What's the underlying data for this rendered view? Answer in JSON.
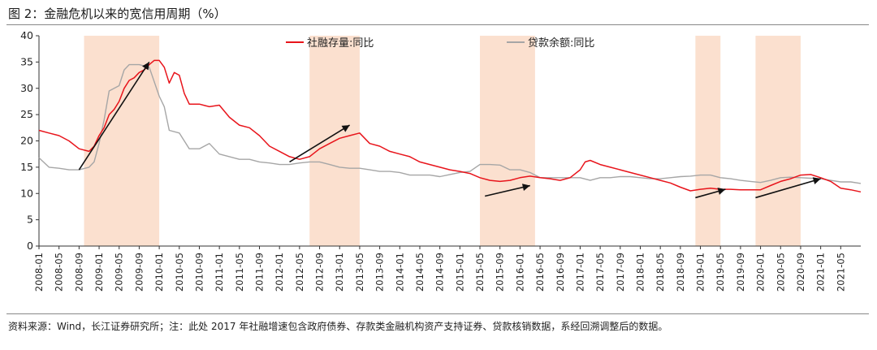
{
  "figure": {
    "title": "图 2：金融危机以来的宽信用周期（%）",
    "note": "资料来源：Wind，长江证券研究所；注：此处 2017 年社融增速包含政府债券、存款类金融机构资产支持证券、贷款核销数据，系经回溯调整后的数据。"
  },
  "colors": {
    "social_financing": "#e8141b",
    "loan_balance": "#a6a6a6",
    "shade": "#fbe0cf",
    "arrow": "#111111"
  },
  "chart_data": {
    "type": "line",
    "title": "图 2：金融危机以来的宽信用周期（%）",
    "xlabel": "",
    "ylabel": "",
    "ylim": [
      0,
      40
    ],
    "yticks": [
      0,
      5,
      10,
      15,
      20,
      25,
      30,
      35,
      40
    ],
    "x_start": "2008-01",
    "x_end": "2021-09",
    "xticks": [
      "2008-01",
      "2008-05",
      "2008-09",
      "2009-01",
      "2009-05",
      "2009-09",
      "2010-01",
      "2010-05",
      "2010-09",
      "2011-01",
      "2011-05",
      "2011-09",
      "2012-01",
      "2012-05",
      "2012-09",
      "2013-01",
      "2013-05",
      "2013-09",
      "2014-01",
      "2014-05",
      "2014-09",
      "2015-01",
      "2015-05",
      "2015-09",
      "2016-01",
      "2016-05",
      "2016-09",
      "2017-01",
      "2017-05",
      "2017-09",
      "2018-01",
      "2018-05",
      "2018-09",
      "2019-01",
      "2019-05",
      "2019-09",
      "2020-01",
      "2020-05",
      "2020-09",
      "2021-01",
      "2021-05"
    ],
    "legend_position": "top",
    "shaded_periods": [
      [
        "2008-10",
        "2010-01"
      ],
      [
        "2012-07",
        "2013-05"
      ],
      [
        "2015-05",
        "2016-04"
      ],
      [
        "2018-12",
        "2019-05"
      ],
      [
        "2019-12",
        "2020-09"
      ]
    ],
    "arrows": [
      {
        "from": [
          "2008-09",
          14.5
        ],
        "to": [
          "2009-11",
          35
        ]
      },
      {
        "from": [
          "2012-03",
          16
        ],
        "to": [
          "2013-03",
          23
        ]
      },
      {
        "from": [
          "2015-06",
          9.5
        ],
        "to": [
          "2016-03",
          11.5
        ]
      },
      {
        "from": [
          "2018-12",
          9.2
        ],
        "to": [
          "2019-06",
          10.8
        ]
      },
      {
        "from": [
          "2019-12",
          9.2
        ],
        "to": [
          "2021-01",
          12.8
        ]
      }
    ],
    "series": [
      {
        "name": "社融存量:同比",
        "color": "#e8141b",
        "points": [
          [
            "2008-01",
            22
          ],
          [
            "2008-03",
            21.5
          ],
          [
            "2008-05",
            21
          ],
          [
            "2008-07",
            20
          ],
          [
            "2008-09",
            18.5
          ],
          [
            "2008-11",
            18
          ],
          [
            "2008-12",
            19
          ],
          [
            "2009-01",
            21
          ],
          [
            "2009-02",
            22.5
          ],
          [
            "2009-03",
            25
          ],
          [
            "2009-04",
            26
          ],
          [
            "2009-05",
            27.5
          ],
          [
            "2009-06",
            30
          ],
          [
            "2009-07",
            31.5
          ],
          [
            "2009-08",
            32
          ],
          [
            "2009-09",
            33
          ],
          [
            "2009-10",
            33.5
          ],
          [
            "2009-11",
            34.5
          ],
          [
            "2009-12",
            35.3
          ],
          [
            "2010-01",
            35.3
          ],
          [
            "2010-02",
            34
          ],
          [
            "2010-03",
            31
          ],
          [
            "2010-04",
            33
          ],
          [
            "2010-05",
            32.5
          ],
          [
            "2010-06",
            29
          ],
          [
            "2010-07",
            27
          ],
          [
            "2010-09",
            27
          ],
          [
            "2010-11",
            26.5
          ],
          [
            "2011-01",
            26.8
          ],
          [
            "2011-03",
            24.5
          ],
          [
            "2011-05",
            23
          ],
          [
            "2011-07",
            22.5
          ],
          [
            "2011-09",
            21
          ],
          [
            "2011-11",
            19
          ],
          [
            "2012-01",
            18
          ],
          [
            "2012-03",
            17
          ],
          [
            "2012-05",
            16.5
          ],
          [
            "2012-07",
            17
          ],
          [
            "2012-09",
            18.5
          ],
          [
            "2012-11",
            19.5
          ],
          [
            "2013-01",
            20.5
          ],
          [
            "2013-03",
            21
          ],
          [
            "2013-05",
            21.5
          ],
          [
            "2013-07",
            19.5
          ],
          [
            "2013-09",
            19
          ],
          [
            "2013-11",
            18
          ],
          [
            "2014-01",
            17.5
          ],
          [
            "2014-03",
            17
          ],
          [
            "2014-05",
            16
          ],
          [
            "2014-07",
            15.5
          ],
          [
            "2014-09",
            15
          ],
          [
            "2014-11",
            14.5
          ],
          [
            "2015-01",
            14.2
          ],
          [
            "2015-03",
            13.8
          ],
          [
            "2015-05",
            13
          ],
          [
            "2015-07",
            12.5
          ],
          [
            "2015-09",
            12.3
          ],
          [
            "2015-11",
            12.5
          ],
          [
            "2016-01",
            13
          ],
          [
            "2016-03",
            13.3
          ],
          [
            "2016-05",
            13
          ],
          [
            "2016-07",
            12.8
          ],
          [
            "2016-09",
            12.5
          ],
          [
            "2016-11",
            13
          ],
          [
            "2017-01",
            14.5
          ],
          [
            "2017-02",
            16
          ],
          [
            "2017-03",
            16.3
          ],
          [
            "2017-05",
            15.5
          ],
          [
            "2017-07",
            15
          ],
          [
            "2017-09",
            14.5
          ],
          [
            "2017-11",
            14
          ],
          [
            "2018-01",
            13.5
          ],
          [
            "2018-03",
            13
          ],
          [
            "2018-05",
            12.5
          ],
          [
            "2018-07",
            12
          ],
          [
            "2018-09",
            11.2
          ],
          [
            "2018-11",
            10.5
          ],
          [
            "2019-01",
            10.8
          ],
          [
            "2019-03",
            11
          ],
          [
            "2019-05",
            10.8
          ],
          [
            "2019-07",
            10.8
          ],
          [
            "2019-09",
            10.7
          ],
          [
            "2019-11",
            10.7
          ],
          [
            "2020-01",
            10.7
          ],
          [
            "2020-03",
            11.5
          ],
          [
            "2020-05",
            12.3
          ],
          [
            "2020-07",
            12.8
          ],
          [
            "2020-09",
            13.5
          ],
          [
            "2020-11",
            13.6
          ],
          [
            "2021-01",
            13
          ],
          [
            "2021-03",
            12.3
          ],
          [
            "2021-05",
            11
          ],
          [
            "2021-07",
            10.7
          ],
          [
            "2021-09",
            10.3
          ]
        ]
      },
      {
        "name": "贷款余额:同比",
        "color": "#a6a6a6",
        "points": [
          [
            "2008-01",
            16.8
          ],
          [
            "2008-03",
            15
          ],
          [
            "2008-05",
            14.8
          ],
          [
            "2008-07",
            14.5
          ],
          [
            "2008-09",
            14.5
          ],
          [
            "2008-11",
            15
          ],
          [
            "2008-12",
            16
          ],
          [
            "2009-01",
            19.5
          ],
          [
            "2009-02",
            24
          ],
          [
            "2009-03",
            29.5
          ],
          [
            "2009-05",
            30.5
          ],
          [
            "2009-06",
            33.5
          ],
          [
            "2009-07",
            34.5
          ],
          [
            "2009-09",
            34.5
          ],
          [
            "2009-11",
            34
          ],
          [
            "2010-01",
            28.5
          ],
          [
            "2010-02",
            26.5
          ],
          [
            "2010-03",
            22
          ],
          [
            "2010-05",
            21.5
          ],
          [
            "2010-07",
            18.5
          ],
          [
            "2010-09",
            18.5
          ],
          [
            "2010-11",
            19.5
          ],
          [
            "2011-01",
            17.5
          ],
          [
            "2011-03",
            17
          ],
          [
            "2011-05",
            16.5
          ],
          [
            "2011-07",
            16.5
          ],
          [
            "2011-09",
            16
          ],
          [
            "2011-11",
            15.8
          ],
          [
            "2012-01",
            15.5
          ],
          [
            "2012-03",
            15.5
          ],
          [
            "2012-05",
            15.8
          ],
          [
            "2012-07",
            16
          ],
          [
            "2012-09",
            16
          ],
          [
            "2012-11",
            15.5
          ],
          [
            "2013-01",
            15
          ],
          [
            "2013-03",
            14.8
          ],
          [
            "2013-05",
            14.8
          ],
          [
            "2013-07",
            14.5
          ],
          [
            "2013-09",
            14.2
          ],
          [
            "2013-11",
            14.2
          ],
          [
            "2014-01",
            14
          ],
          [
            "2014-03",
            13.5
          ],
          [
            "2014-05",
            13.5
          ],
          [
            "2014-07",
            13.5
          ],
          [
            "2014-09",
            13.2
          ],
          [
            "2014-11",
            13.6
          ],
          [
            "2015-01",
            14
          ],
          [
            "2015-03",
            14.2
          ],
          [
            "2015-05",
            15.5
          ],
          [
            "2015-07",
            15.5
          ],
          [
            "2015-09",
            15.4
          ],
          [
            "2015-11",
            14.5
          ],
          [
            "2016-01",
            14.5
          ],
          [
            "2016-03",
            14
          ],
          [
            "2016-05",
            13
          ],
          [
            "2016-07",
            13
          ],
          [
            "2016-09",
            13
          ],
          [
            "2016-11",
            13
          ],
          [
            "2017-01",
            13
          ],
          [
            "2017-03",
            12.5
          ],
          [
            "2017-05",
            13
          ],
          [
            "2017-07",
            13
          ],
          [
            "2017-09",
            13.2
          ],
          [
            "2017-11",
            13.2
          ],
          [
            "2018-01",
            13
          ],
          [
            "2018-03",
            12.8
          ],
          [
            "2018-05",
            12.8
          ],
          [
            "2018-07",
            13
          ],
          [
            "2018-09",
            13.2
          ],
          [
            "2018-11",
            13.3
          ],
          [
            "2019-01",
            13.5
          ],
          [
            "2019-03",
            13.5
          ],
          [
            "2019-05",
            13
          ],
          [
            "2019-07",
            12.8
          ],
          [
            "2019-09",
            12.5
          ],
          [
            "2019-11",
            12.3
          ],
          [
            "2020-01",
            12.1
          ],
          [
            "2020-03",
            12.5
          ],
          [
            "2020-05",
            13
          ],
          [
            "2020-07",
            13.1
          ],
          [
            "2020-09",
            13
          ],
          [
            "2020-11",
            12.9
          ],
          [
            "2021-01",
            12.8
          ],
          [
            "2021-03",
            12.5
          ],
          [
            "2021-05",
            12.2
          ],
          [
            "2021-07",
            12.2
          ],
          [
            "2021-09",
            11.9
          ]
        ]
      }
    ]
  }
}
